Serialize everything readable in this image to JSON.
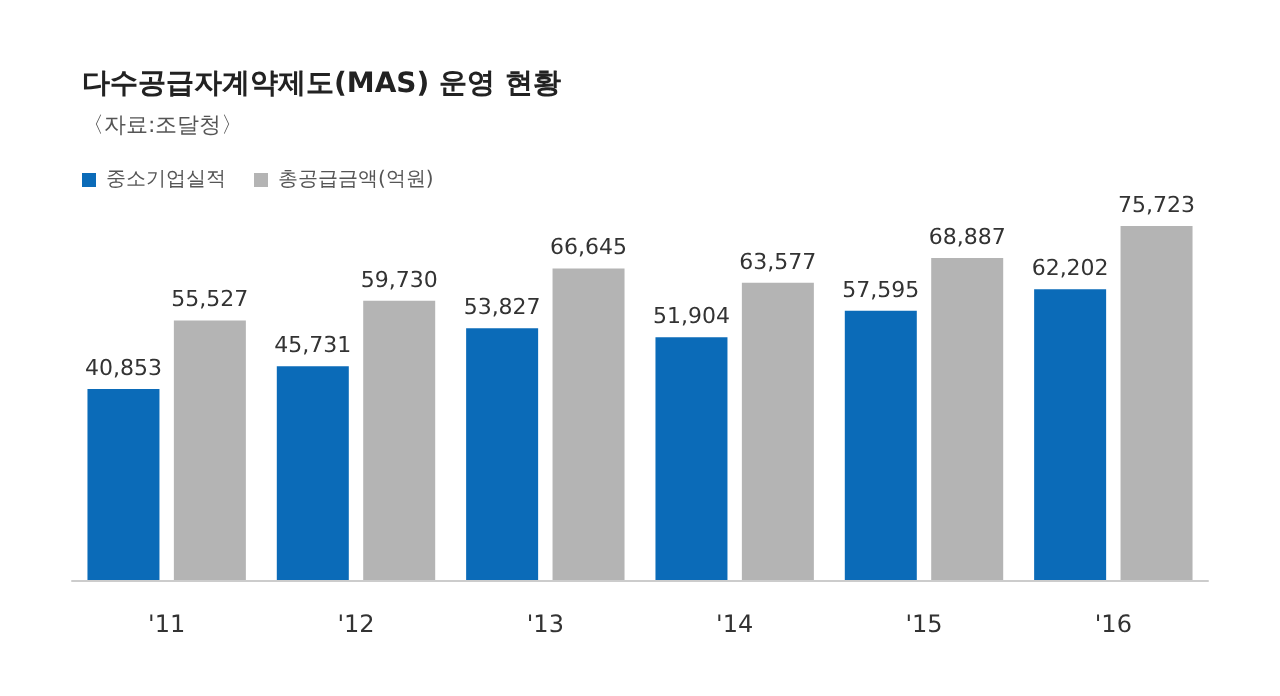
{
  "chart_data": {
    "type": "bar",
    "title": "다수공급자계약제도(MAS) 운영 현황",
    "subtitle": "〈자료:조달청〉",
    "categories": [
      "'11",
      "'12",
      "'13",
      "'14",
      "'15",
      "'16"
    ],
    "series": [
      {
        "name": "중소기업실적",
        "color": "#0b6bb8",
        "values": [
          40853,
          45731,
          53827,
          51904,
          57595,
          62202
        ],
        "value_labels": [
          "40,853",
          "45,731",
          "53,827",
          "51,904",
          "57,595",
          "62,202"
        ]
      },
      {
        "name": "총공급금액(억원)",
        "color": "#b4b4b4",
        "values": [
          55527,
          59730,
          66645,
          63577,
          68887,
          75723
        ],
        "value_labels": [
          "55,527",
          "59,730",
          "66,645",
          "63,577",
          "68,887",
          "75,723"
        ]
      }
    ],
    "legend": "top left"
  }
}
